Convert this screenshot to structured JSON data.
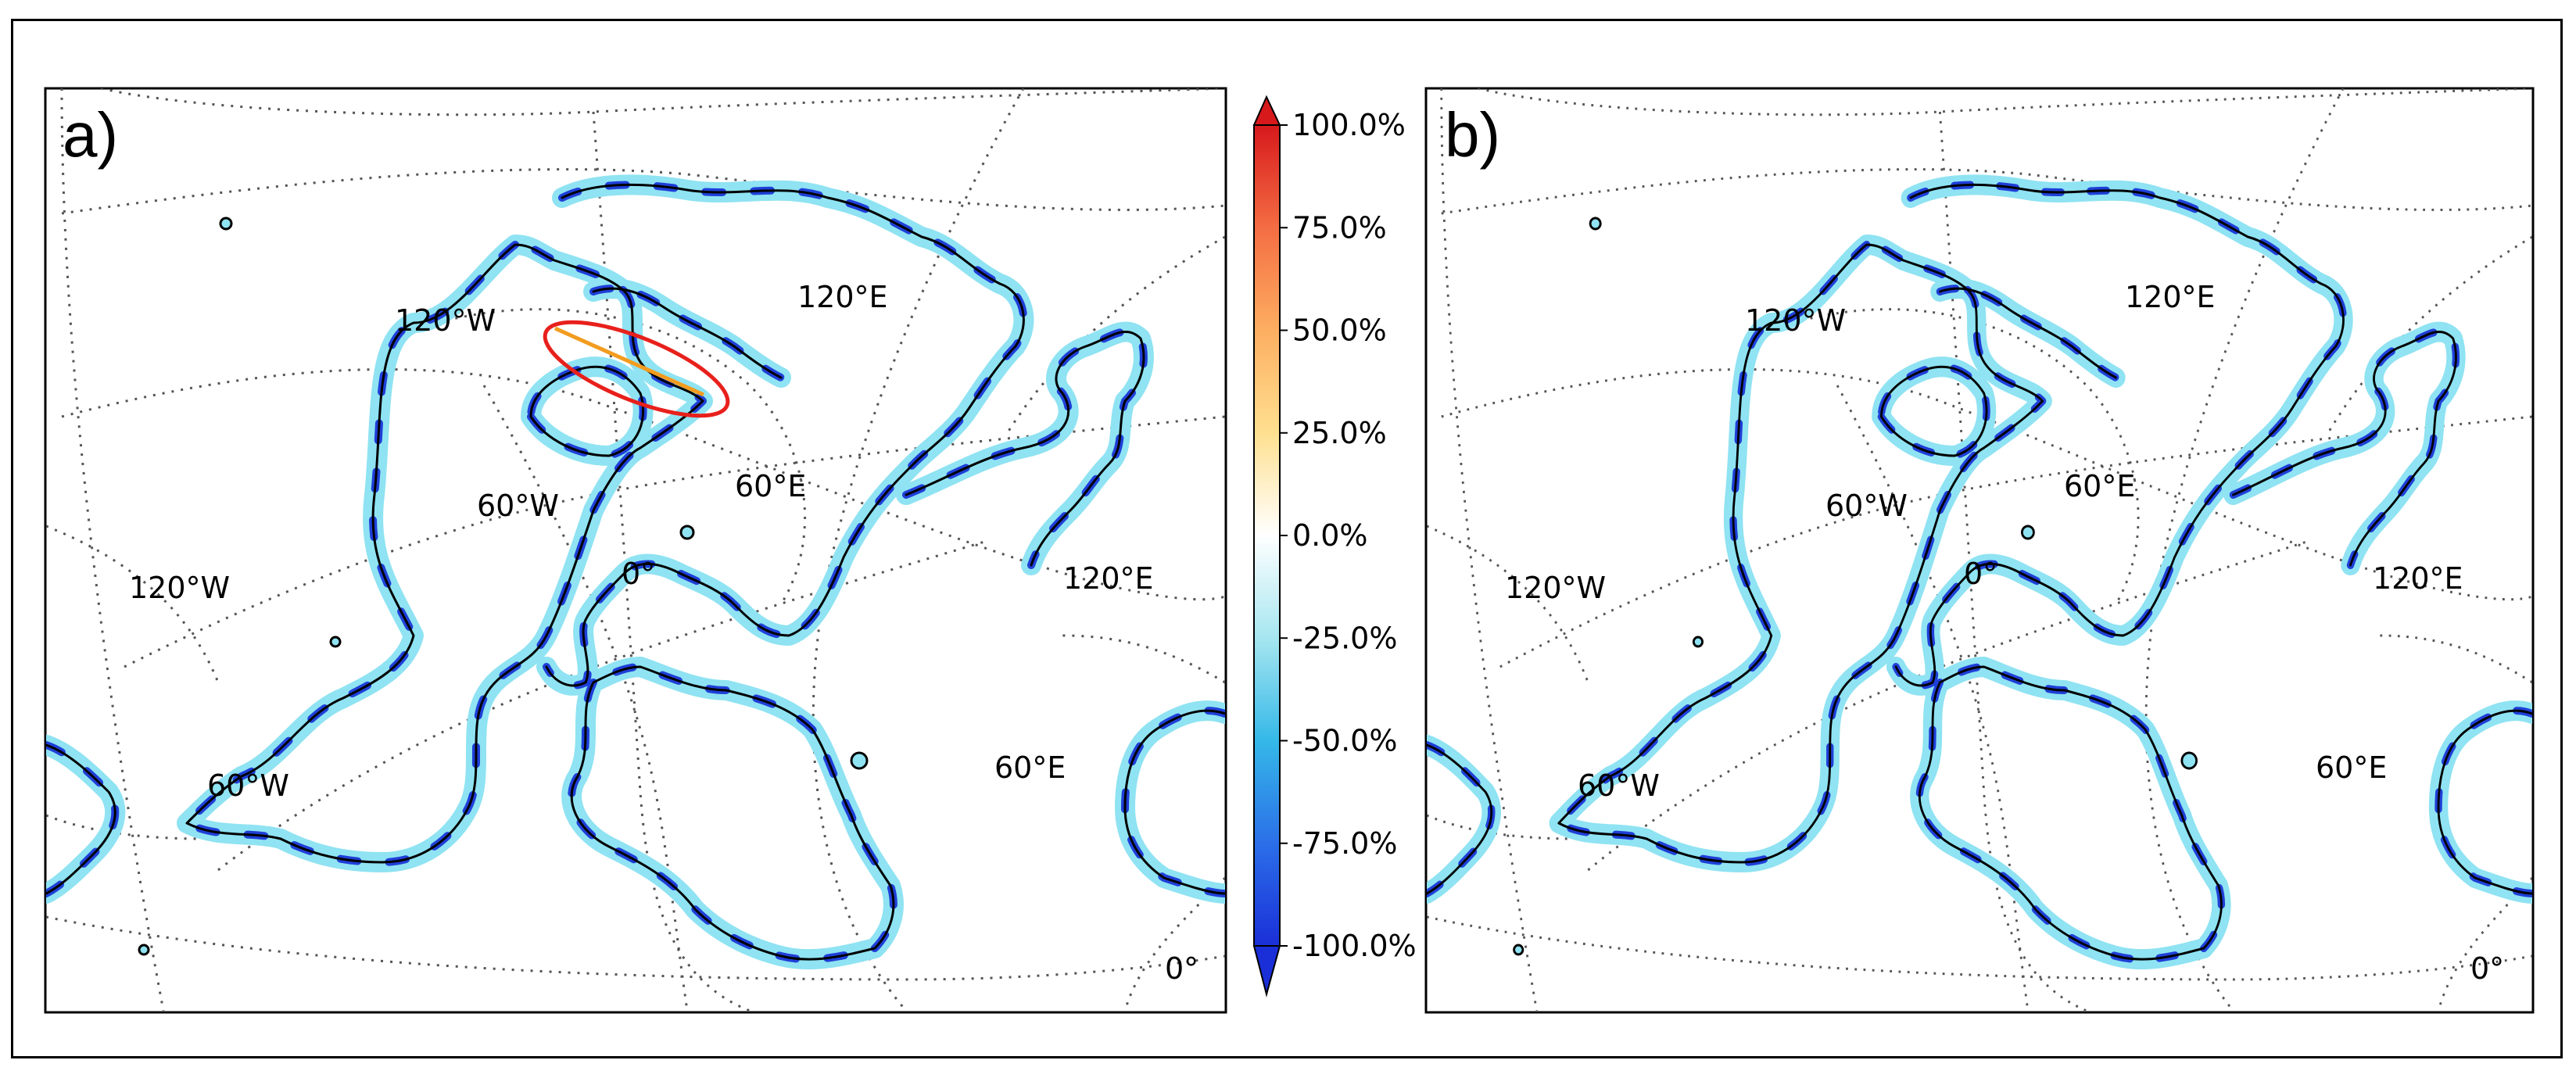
{
  "panels": [
    {
      "id": "a",
      "letter": "a)",
      "gridlabels": {
        "w120_top": "120°W",
        "e120_top": "120°E",
        "w60_mid": "60°W",
        "e60_mid": "60°E",
        "w120_left": "120°W",
        "e120_right": "120°E",
        "zero_mid": "0°",
        "w60_low": "60°W",
        "e60_low": "60°E",
        "zero_corner": "0°"
      },
      "highlight": {
        "shape": "ellipse",
        "color": "#e8201c",
        "region": "Arctic strait"
      }
    },
    {
      "id": "b",
      "letter": "b)",
      "gridlabels": {
        "w120_top": "120°W",
        "e120_top": "120°E",
        "w60_mid": "60°W",
        "e60_mid": "60°E",
        "w120_left": "120°W",
        "e120_right": "120°E",
        "zero_mid": "0°",
        "w60_low": "60°W",
        "e60_low": "60°E",
        "zero_corner": "0°"
      }
    }
  ],
  "colorbar": {
    "ticks": [
      "100.0%",
      "75.0%",
      "50.0%",
      "25.0%",
      "0.0%",
      "-25.0%",
      "-50.0%",
      "-75.0%",
      "-100.0%"
    ],
    "colors": [
      "#d7191c",
      "#f46d43",
      "#fdae61",
      "#fee090",
      "#ffffff",
      "#a6e6f0",
      "#35b8e8",
      "#2b6fe8",
      "#1a2fd8"
    ]
  },
  "style": {
    "coast": "#000000",
    "grid": "#555555",
    "halo_light": "#8fe3f2",
    "halo_dark": "#1f3fd8"
  }
}
